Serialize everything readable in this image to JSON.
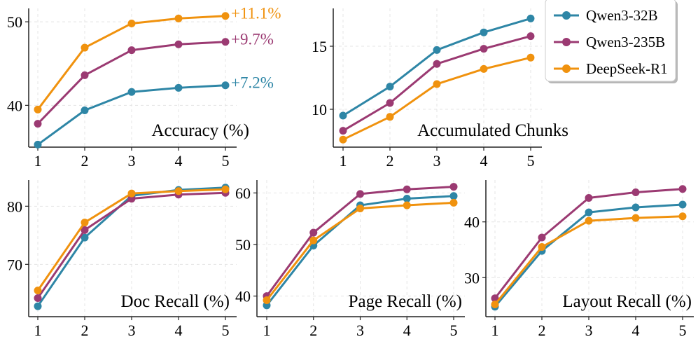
{
  "legend": {
    "entries": [
      "Qwen3-32B",
      "Qwen3-235B",
      "DeepSeek-R1"
    ]
  },
  "colors": {
    "qwen32": "#2e86a6",
    "qwen235": "#9b3a72",
    "deepseek": "#f0920e"
  },
  "chart_data": [
    {
      "type": "line",
      "title": "Accuracy (%)",
      "x": [
        1,
        2,
        3,
        4,
        5
      ],
      "xticks": [
        "1",
        "2",
        "3",
        "4",
        "5"
      ],
      "ylim": [
        35.0,
        51.6
      ],
      "yticks": [
        "40",
        "50"
      ],
      "ytick_values": [
        40,
        50
      ],
      "series": [
        {
          "name": "Qwen3-32B",
          "values": [
            35.3,
            39.4,
            41.6,
            42.1,
            42.4
          ]
        },
        {
          "name": "Qwen3-235B",
          "values": [
            37.8,
            43.6,
            46.6,
            47.3,
            47.6
          ]
        },
        {
          "name": "DeepSeek-R1",
          "values": [
            39.5,
            46.9,
            49.8,
            50.4,
            50.7
          ]
        }
      ],
      "annotations": [
        "+7.2%",
        "+9.7%",
        "+11.1%"
      ]
    },
    {
      "type": "line",
      "title": "Accumulated Chunks",
      "x": [
        1,
        2,
        3,
        4,
        5
      ],
      "xticks": [
        "1",
        "2",
        "3",
        "4",
        "5"
      ],
      "ylim": [
        7.0,
        18.0
      ],
      "yticks": [
        "10",
        "15"
      ],
      "ytick_values": [
        10,
        15
      ],
      "series": [
        {
          "name": "Qwen3-32B",
          "values": [
            9.5,
            11.8,
            14.7,
            16.1,
            17.2
          ]
        },
        {
          "name": "Qwen3-235B",
          "values": [
            8.3,
            10.5,
            13.6,
            14.8,
            15.8
          ]
        },
        {
          "name": "DeepSeek-R1",
          "values": [
            7.6,
            9.4,
            12.0,
            13.2,
            14.1
          ]
        }
      ]
    },
    {
      "type": "line",
      "title": "Doc Recall (%)",
      "x": [
        1,
        2,
        3,
        4,
        5
      ],
      "xticks": [
        "1",
        "2",
        "3",
        "4",
        "5"
      ],
      "ylim": [
        61.0,
        84.5
      ],
      "yticks": [
        "70",
        "80"
      ],
      "ytick_values": [
        70,
        80
      ],
      "series": [
        {
          "name": "Qwen3-32B",
          "values": [
            62.8,
            74.6,
            81.8,
            82.8,
            83.2
          ]
        },
        {
          "name": "Qwen3-235B",
          "values": [
            64.2,
            75.9,
            81.3,
            82.0,
            82.3
          ]
        },
        {
          "name": "DeepSeek-R1",
          "values": [
            65.5,
            77.2,
            82.2,
            82.6,
            82.9
          ]
        }
      ]
    },
    {
      "type": "line",
      "title": "Page Recall (%)",
      "x": [
        1,
        2,
        3,
        4,
        5
      ],
      "xticks": [
        "1",
        "2",
        "3",
        "4",
        "5"
      ],
      "ylim": [
        36.0,
        62.5
      ],
      "yticks": [
        "40",
        "50",
        "60"
      ],
      "ytick_values": [
        40,
        50,
        60
      ],
      "series": [
        {
          "name": "Qwen3-32B",
          "values": [
            38.2,
            49.8,
            57.6,
            58.9,
            59.4
          ]
        },
        {
          "name": "Qwen3-235B",
          "values": [
            40.0,
            52.3,
            59.8,
            60.7,
            61.2
          ]
        },
        {
          "name": "DeepSeek-R1",
          "values": [
            39.2,
            50.8,
            57.0,
            57.6,
            58.1
          ]
        }
      ]
    },
    {
      "type": "line",
      "title": "Layout Recall (%)",
      "x": [
        1,
        2,
        3,
        4,
        5
      ],
      "xticks": [
        "1",
        "2",
        "3",
        "4",
        "5"
      ],
      "ylim": [
        23.0,
        47.5
      ],
      "yticks": [
        "30",
        "40"
      ],
      "ytick_values": [
        30,
        40
      ],
      "series": [
        {
          "name": "Qwen3-32B",
          "values": [
            24.8,
            34.8,
            41.7,
            42.6,
            43.1
          ]
        },
        {
          "name": "Qwen3-235B",
          "values": [
            26.3,
            37.2,
            44.3,
            45.3,
            45.9
          ]
        },
        {
          "name": "DeepSeek-R1",
          "values": [
            25.2,
            35.5,
            40.2,
            40.7,
            41.0
          ]
        }
      ]
    }
  ]
}
